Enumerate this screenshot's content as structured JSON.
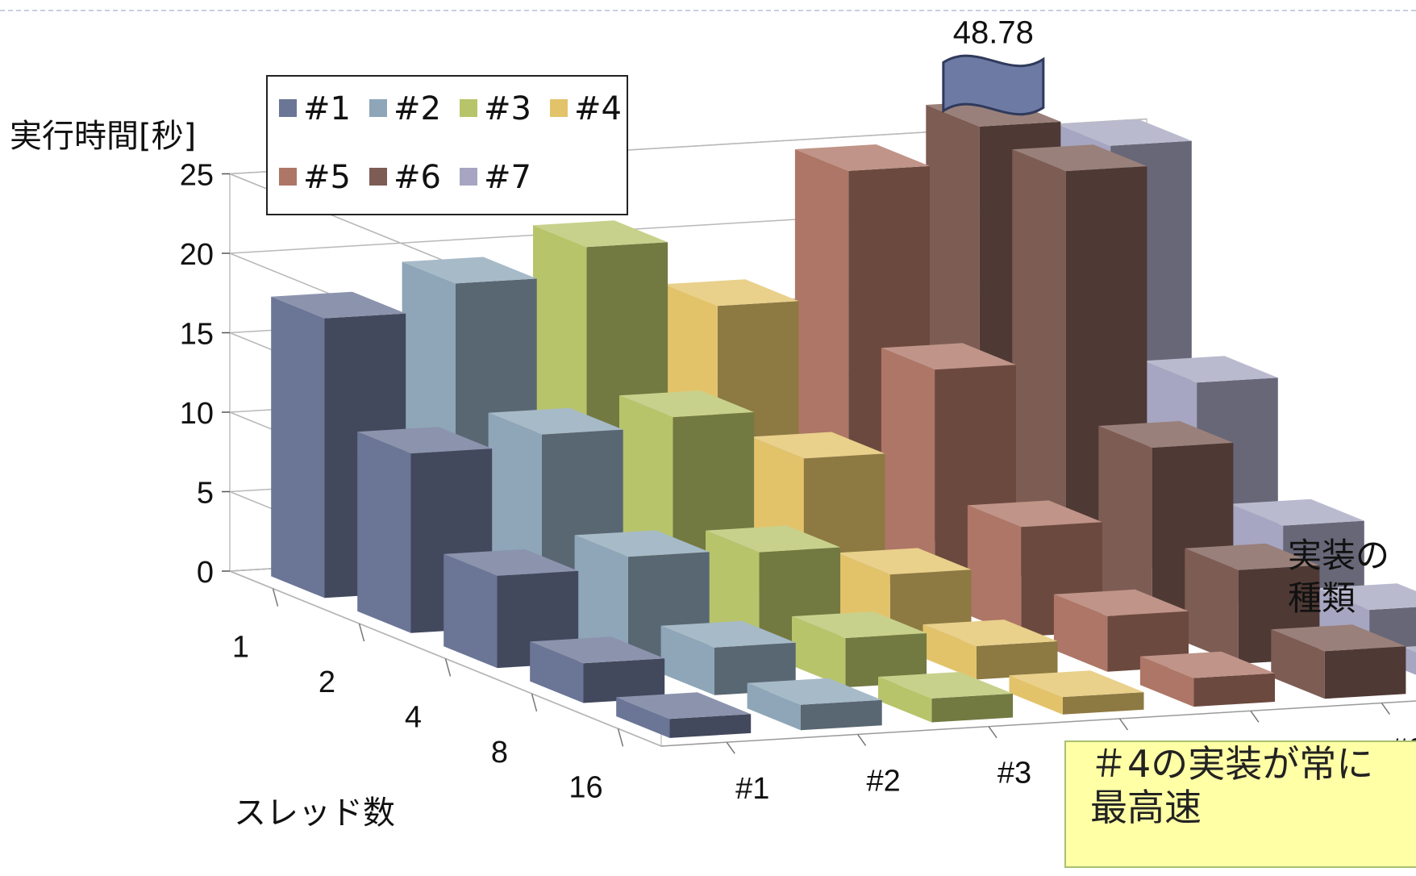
{
  "chart_data": {
    "type": "bar3d",
    "title": "",
    "ylabel": "実行時間[秒]",
    "xlabel": "スレッド数",
    "zlabel": [
      "実装の",
      "種類"
    ],
    "threads": [
      "1",
      "2",
      "4",
      "8",
      "16"
    ],
    "yticks": [
      "0",
      "5",
      "10",
      "15",
      "20",
      "25"
    ],
    "ylim": [
      0,
      25
    ],
    "break_label": "48.78",
    "series": [
      {
        "name": "#1",
        "color": "#6b7596",
        "values": [
          17.6,
          11.3,
          5.8,
          2.5,
          1.2
        ]
      },
      {
        "name": "#2",
        "color": "#8ea6b8",
        "values": [
          19.3,
          12.0,
          6.5,
          3.0,
          1.6
        ]
      },
      {
        "name": "#3",
        "color": "#b8c46a",
        "values": [
          21.1,
          12.6,
          6.3,
          3.1,
          1.5
        ]
      },
      {
        "name": "#4",
        "color": "#e3c36a",
        "values": [
          16.9,
          9.5,
          4.4,
          2.1,
          1.1
        ]
      },
      {
        "name": "#5",
        "color": "#ae7666",
        "values": [
          24.9,
          14.6,
          6.9,
          3.5,
          1.8
        ]
      },
      {
        "name": "#6",
        "color": "#7d5c54",
        "values": [
          48.78,
          26.6,
          11.4,
          5.9,
          3.0
        ]
      },
      {
        "name": "#7",
        "color": "#a6a6c2",
        "values": [
          25.5,
          12.8,
          6.0,
          2.9,
          1.4
        ]
      }
    ]
  },
  "note": {
    "line1": "＃4の実装が常に",
    "line2": "最高速"
  }
}
